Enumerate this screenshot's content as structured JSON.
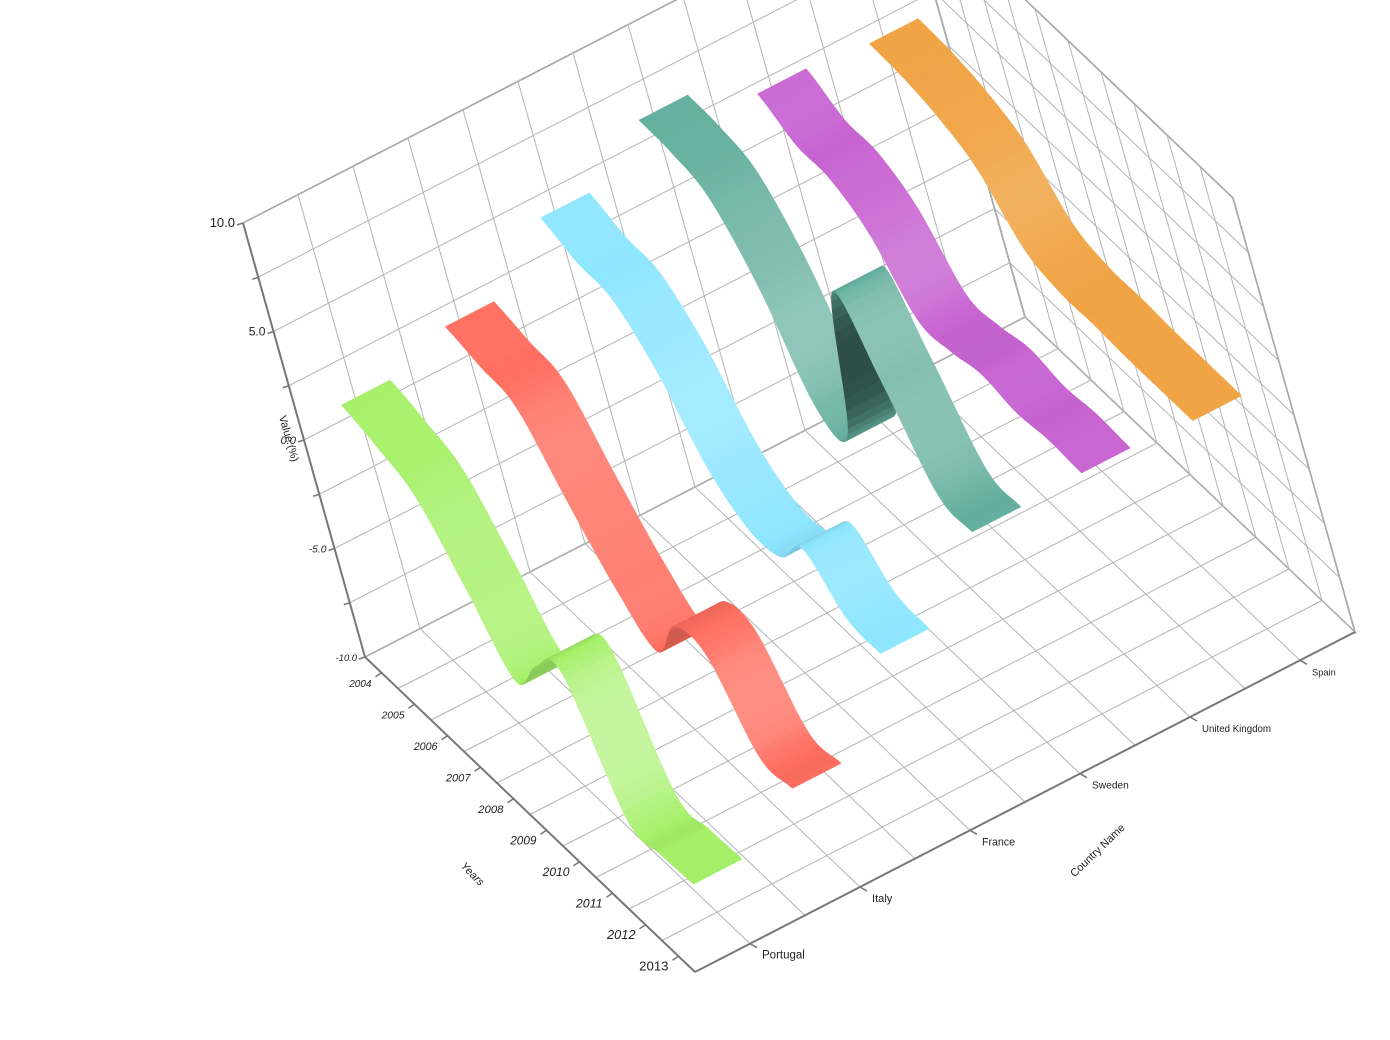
{
  "chart_data": {
    "type": "ribbon-3d",
    "title": "",
    "xlabel": "Years",
    "ylabel": "Country Name",
    "zlabel": "Value (%)",
    "x": [
      "2004",
      "2005",
      "2006",
      "2007",
      "2008",
      "2009",
      "2010",
      "2011",
      "2012",
      "2013"
    ],
    "z_ticks": [
      "10.0",
      "5.0",
      "0.0",
      "-5.0",
      "-10.0"
    ],
    "zlim": [
      -10,
      10
    ],
    "grid": true,
    "series": [
      {
        "name": "Portugal",
        "color": "#a6f06a",
        "values": [
          1.6,
          1.1,
          0.3,
          -2.4,
          -5.3,
          -3.2,
          -2.0,
          -7.3,
          -7.5,
          -7.4
        ]
      },
      {
        "name": "Italy",
        "color": "#ff6f61",
        "values": [
          2.6,
          2.2,
          1.8,
          -1.0,
          -3.6,
          -5.1,
          -2.5,
          -2.4,
          -5.6,
          -5.6
        ]
      },
      {
        "name": "France",
        "color": "#8fe6ff",
        "values": [
          5.0,
          4.4,
          4.2,
          2.4,
          -0.7,
          -2.1,
          -1.9,
          -0.1,
          -1.8,
          -2.0
        ]
      },
      {
        "name": "Sweden",
        "color": "#66b0a0",
        "values": [
          6.9,
          6.8,
          6.2,
          3.6,
          -0.6,
          -0.3,
          7.7,
          5.0,
          1.3,
          1.0
        ]
      },
      {
        "name": "United Kingdom",
        "color": "#c865d2",
        "values": [
          5.5,
          4.6,
          4.5,
          3.4,
          0.9,
          0.9,
          1.3,
          1.0,
          1.2,
          1.1
        ]
      },
      {
        "name": "Spain",
        "color": "#f0a445",
        "values": [
          5.2,
          5.1,
          4.7,
          3.8,
          1.6,
          1.0,
          1.0,
          0.9,
          0.9,
          0.9
        ]
      }
    ]
  }
}
